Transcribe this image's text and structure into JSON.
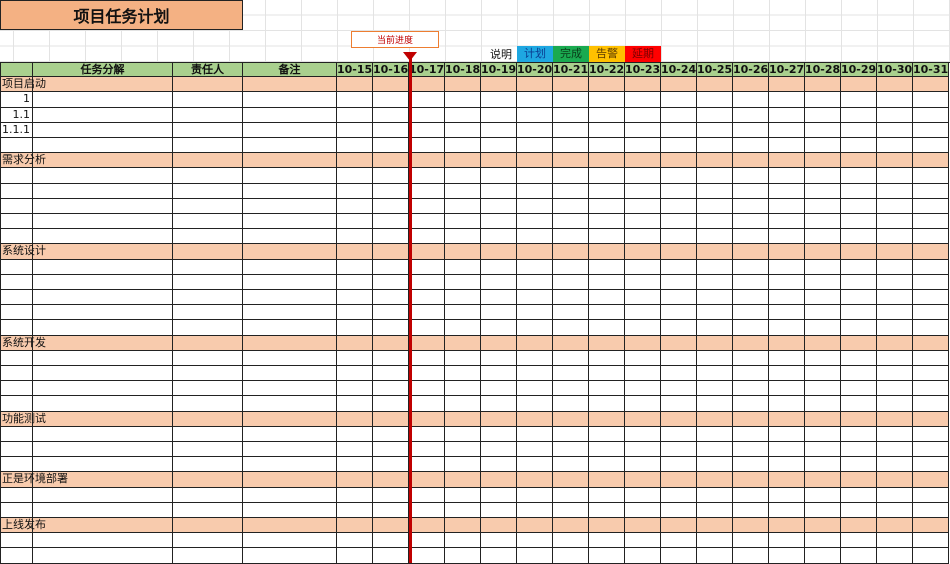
{
  "title": "项目任务计划",
  "progress_label": "当前进度",
  "current_date": "10-16",
  "legend": {
    "label": "说明",
    "items": [
      {
        "label": "计划",
        "bg": "#1ea7e1",
        "color": "#0b3d91"
      },
      {
        "label": "完成",
        "bg": "#1aaa50",
        "color": "#0a3d1a"
      },
      {
        "label": "告警",
        "bg": "#ffc000",
        "color": "#5a3a00"
      },
      {
        "label": "延期",
        "bg": "#ff0000",
        "color": "#7a0000"
      }
    ]
  },
  "colors": {
    "header": "#a9d08e",
    "section": "#f8cbad",
    "title": "#f4b183",
    "progress": "#c00000"
  },
  "columns": {
    "task": "任务分解",
    "owner": "责任人",
    "note": "备注"
  },
  "dates": [
    "10-15",
    "10-16",
    "10-17",
    "10-18",
    "10-19",
    "10-20",
    "10-21",
    "10-22",
    "10-23",
    "10-24",
    "10-25",
    "10-26",
    "10-27",
    "10-28",
    "10-29",
    "10-30",
    "10-31"
  ],
  "sections": [
    {
      "name": "项目启动",
      "rows": [
        "1",
        "1.1",
        "1.1.1",
        ""
      ]
    },
    {
      "name": "需求分析",
      "rows": [
        "",
        "",
        "",
        "",
        ""
      ]
    },
    {
      "name": "系统设计",
      "rows": [
        "",
        "",
        "",
        "",
        ""
      ]
    },
    {
      "name": "系统开发",
      "rows": [
        "",
        "",
        "",
        ""
      ]
    },
    {
      "name": "功能测试",
      "rows": [
        "",
        "",
        ""
      ]
    },
    {
      "name": "正是环境部署",
      "rows": [
        "",
        ""
      ]
    },
    {
      "name": "上线发布",
      "rows": [
        "",
        ""
      ]
    }
  ]
}
